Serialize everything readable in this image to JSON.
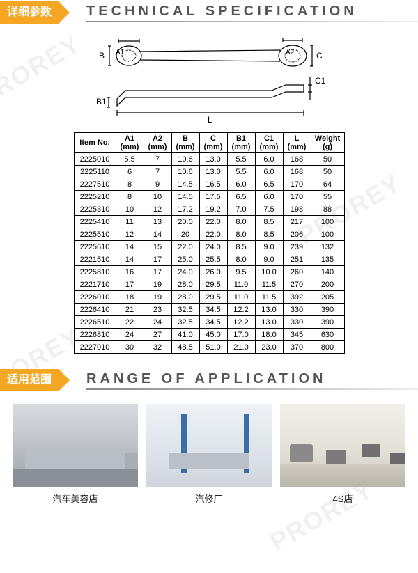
{
  "watermark_text": "PROREY",
  "spec": {
    "tag": "详细参数",
    "title": "TECHNICAL SPECIFICATION",
    "diagram": {
      "labels": {
        "B": "B",
        "A1": "A1",
        "A2": "A2",
        "C": "C",
        "B1": "B1",
        "C1": "C1",
        "L": "L"
      },
      "stroke": "#000000",
      "text_fontsize": 12
    },
    "table": {
      "columns": [
        {
          "key": "item",
          "label": "Item No.",
          "unit": ""
        },
        {
          "key": "a1",
          "label": "A1",
          "unit": "(mm)"
        },
        {
          "key": "a2",
          "label": "A2",
          "unit": "(mm)"
        },
        {
          "key": "b",
          "label": "B",
          "unit": "(mm)"
        },
        {
          "key": "c",
          "label": "C",
          "unit": "(mm)"
        },
        {
          "key": "b1",
          "label": "B1",
          "unit": "(mm)"
        },
        {
          "key": "c1",
          "label": "C1",
          "unit": "(mm)"
        },
        {
          "key": "l",
          "label": "L",
          "unit": "(mm)"
        },
        {
          "key": "wt",
          "label": "Weight",
          "unit": "(g)"
        }
      ],
      "rows": [
        [
          "2225010",
          "5.5",
          "7",
          "10.6",
          "13.0",
          "5.5",
          "6.0",
          "168",
          "50"
        ],
        [
          "2225110",
          "6",
          "7",
          "10.6",
          "13.0",
          "5.5",
          "6.0",
          "168",
          "50"
        ],
        [
          "2227510",
          "8",
          "9",
          "14.5",
          "16.5",
          "6.0",
          "6.5",
          "170",
          "64"
        ],
        [
          "2225210",
          "8",
          "10",
          "14.5",
          "17.5",
          "6.5",
          "6.0",
          "170",
          "55"
        ],
        [
          "2225310",
          "10",
          "12",
          "17.2",
          "19.2",
          "7.0",
          "7.5",
          "198",
          "88"
        ],
        [
          "2225410",
          "11",
          "13",
          "20.0",
          "22.0",
          "8.0",
          "8.5",
          "217",
          "100"
        ],
        [
          "2225510",
          "12",
          "14",
          "20",
          "22.0",
          "8.0",
          "8.5",
          "206",
          "100"
        ],
        [
          "2225610",
          "14",
          "15",
          "22.0",
          "24.0",
          "8.5",
          "9.0",
          "239",
          "132"
        ],
        [
          "2221510",
          "14",
          "17",
          "25.0",
          "25.5",
          "8.0",
          "9.0",
          "251",
          "135"
        ],
        [
          "2225810",
          "16",
          "17",
          "24.0",
          "26.0",
          "9.5",
          "10.0",
          "260",
          "140"
        ],
        [
          "2221710",
          "17",
          "19",
          "28.0",
          "29.5",
          "11.0",
          "11.5",
          "270",
          "200"
        ],
        [
          "2226010",
          "18",
          "19",
          "28.0",
          "29.5",
          "11.0",
          "11.5",
          "392",
          "205"
        ],
        [
          "2226410",
          "21",
          "23",
          "32.5",
          "34.5",
          "12.2",
          "13.0",
          "330",
          "390"
        ],
        [
          "2226510",
          "22",
          "24",
          "32.5",
          "34.5",
          "12.2",
          "13.0",
          "330",
          "390"
        ],
        [
          "2226810",
          "24",
          "27",
          "41.0",
          "45.0",
          "17.0",
          "18.0",
          "345",
          "630"
        ],
        [
          "2227010",
          "30",
          "32",
          "48.5",
          "51.0",
          "21.0",
          "23.0",
          "370",
          "800"
        ]
      ]
    }
  },
  "range": {
    "tag": "适用范围",
    "title": "RANGE OF APPLICATION",
    "items": [
      {
        "caption": "汽车美容店",
        "name": "auto-detailing-shop"
      },
      {
        "caption": "汽修厂",
        "name": "auto-repair-shop"
      },
      {
        "caption": "4S店",
        "name": "4s-dealership"
      }
    ]
  },
  "colors": {
    "accent": "#f5a623",
    "text": "#333333",
    "border": "#000000",
    "header_underline": "#888888"
  }
}
